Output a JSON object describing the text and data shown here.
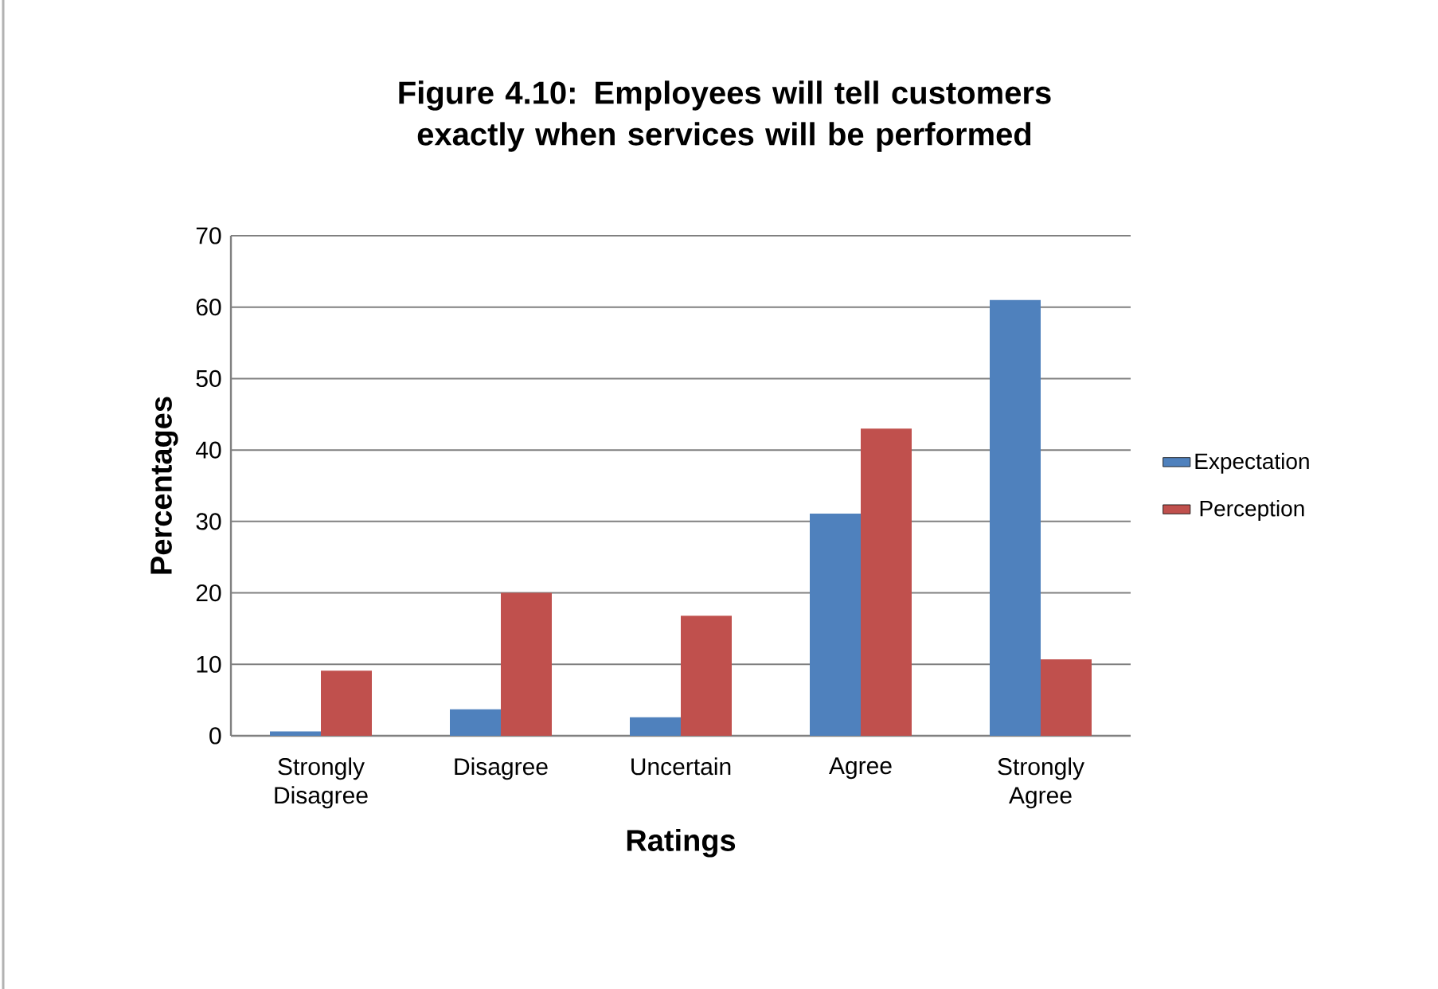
{
  "chart_data": {
    "type": "bar",
    "title": "Figure 4.10: Employees will tell customers exactly when services will be performed",
    "xlabel": "Ratings",
    "ylabel": "Percentages",
    "categories": [
      "Strongly Disagree",
      "Disagree",
      "Uncertain",
      "Agree",
      "Strongly Agree"
    ],
    "series": [
      {
        "name": "Expectation",
        "color": "#4f81bd",
        "values": [
          0.6,
          3.7,
          2.6,
          31.1,
          61.0
        ]
      },
      {
        "name": "Perception",
        "color": "#c0504d",
        "values": [
          9.1,
          20.0,
          16.8,
          43.0,
          10.7
        ]
      }
    ],
    "ylim": [
      0,
      70
    ],
    "yticks": [
      0,
      10,
      20,
      30,
      40,
      50,
      60,
      70
    ],
    "grid": "y",
    "legend": "right"
  }
}
